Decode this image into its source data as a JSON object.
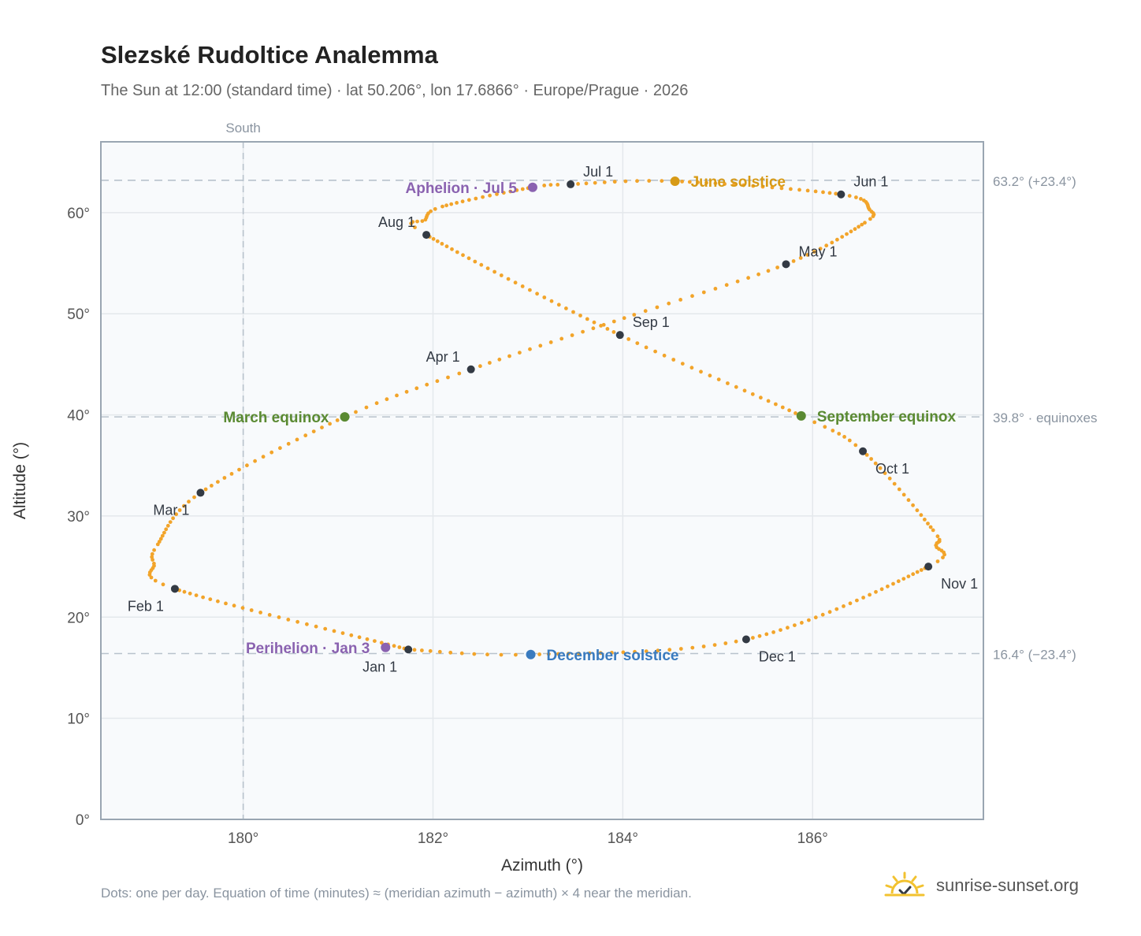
{
  "header": {
    "title": "Slezské Rudoltice Analemma",
    "subtitle": "The Sun at 12:00 (standard time) · lat 50.206°, lon 17.6866° · Europe/Prague · 2026"
  },
  "footer": {
    "note": "Dots: one per day. Equation of time (minutes) ≈ (meridian azimuth − azimuth) × 4 near the meridian.",
    "brand": "sunrise-sunset.org"
  },
  "colors": {
    "path": "#f2a42a",
    "month": "#333a44",
    "june": "#d79a16",
    "december": "#3a7bbf",
    "equinox": "#5a8a32",
    "apsis": "#8a62b0",
    "reference": "#b8c2cc",
    "plot_bg": "#f8fafc",
    "grid": "#e4e8ec",
    "frame": "#9aa6b2"
  },
  "chart_data": {
    "type": "scatter",
    "xlabel": "Azimuth (°)",
    "ylabel": "Altitude (°)",
    "xlim": [
      178.5,
      187.8
    ],
    "ylim": [
      0,
      67
    ],
    "xticks": [
      {
        "value": 180,
        "label": "180°"
      },
      {
        "value": 182,
        "label": "182°"
      },
      {
        "value": 184,
        "label": "184°"
      },
      {
        "value": 186,
        "label": "186°"
      }
    ],
    "yticks": [
      {
        "value": 0,
        "label": "0°"
      },
      {
        "value": 10,
        "label": "10°"
      },
      {
        "value": 20,
        "label": "20°"
      },
      {
        "value": 30,
        "label": "30°"
      },
      {
        "value": 40,
        "label": "40°"
      },
      {
        "value": 50,
        "label": "50°"
      },
      {
        "value": 60,
        "label": "60°"
      }
    ],
    "grid": true,
    "meridian": {
      "azimuth": 180,
      "label": "South"
    },
    "reference_lines": [
      {
        "altitude": 63.2,
        "label": "63.2° (+23.4°)"
      },
      {
        "altitude": 39.8,
        "label": "39.8° · equinoxes"
      },
      {
        "altitude": 16.4,
        "label": "16.4° (−23.4°)"
      }
    ],
    "path_anchors": [
      {
        "day": 0,
        "az": 181.74,
        "alt": 16.8
      },
      {
        "day": 31,
        "az": 179.28,
        "alt": 22.8
      },
      {
        "day": 40,
        "az": 179.06,
        "alt": 25.3
      },
      {
        "day": 45,
        "az": 179.1,
        "alt": 27.2
      },
      {
        "day": 59,
        "az": 179.55,
        "alt": 32.3
      },
      {
        "day": 78,
        "az": 181.07,
        "alt": 39.8
      },
      {
        "day": 90,
        "az": 182.4,
        "alt": 44.5
      },
      {
        "day": 106,
        "az": 184.12,
        "alt": 49.9
      },
      {
        "day": 120,
        "az": 185.72,
        "alt": 54.9
      },
      {
        "day": 135,
        "az": 186.55,
        "alt": 59.0
      },
      {
        "day": 141,
        "az": 186.6,
        "alt": 60.3
      },
      {
        "day": 151,
        "az": 186.3,
        "alt": 61.8
      },
      {
        "day": 171,
        "az": 184.55,
        "alt": 63.1
      },
      {
        "day": 181,
        "az": 183.45,
        "alt": 62.8
      },
      {
        "day": 185,
        "az": 183.05,
        "alt": 62.5
      },
      {
        "day": 200,
        "az": 182.1,
        "alt": 60.6
      },
      {
        "day": 206,
        "az": 181.92,
        "alt": 59.3
      },
      {
        "day": 212,
        "az": 181.93,
        "alt": 57.8
      },
      {
        "day": 243,
        "az": 183.97,
        "alt": 47.9
      },
      {
        "day": 265,
        "az": 185.88,
        "alt": 39.9
      },
      {
        "day": 273,
        "az": 186.53,
        "alt": 36.4
      },
      {
        "day": 290,
        "az": 187.27,
        "alt": 28.6
      },
      {
        "day": 296,
        "az": 187.3,
        "alt": 27.1
      },
      {
        "day": 304,
        "az": 187.22,
        "alt": 25.0
      },
      {
        "day": 334,
        "az": 185.3,
        "alt": 17.8
      },
      {
        "day": 354,
        "az": 183.03,
        "alt": 16.3
      },
      {
        "day": 365,
        "az": 181.74,
        "alt": 16.8
      }
    ],
    "month_markers": [
      {
        "label": "Jan 1",
        "az": 181.74,
        "alt": 16.8,
        "pos": "below-left"
      },
      {
        "label": "Feb 1",
        "az": 179.28,
        "alt": 22.8,
        "pos": "below-left"
      },
      {
        "label": "Mar 1",
        "az": 179.55,
        "alt": 32.3,
        "pos": "below-left"
      },
      {
        "label": "Apr 1",
        "az": 182.4,
        "alt": 44.5,
        "pos": "above-left"
      },
      {
        "label": "May 1",
        "az": 185.72,
        "alt": 54.9,
        "pos": "above-right"
      },
      {
        "label": "Jun 1",
        "az": 186.3,
        "alt": 61.8,
        "pos": "above-right"
      },
      {
        "label": "Jul 1",
        "az": 183.45,
        "alt": 62.8,
        "pos": "above-right"
      },
      {
        "label": "Aug 1",
        "az": 181.93,
        "alt": 57.8,
        "pos": "above-left"
      },
      {
        "label": "Sep 1",
        "az": 183.97,
        "alt": 47.9,
        "pos": "above-right"
      },
      {
        "label": "Oct 1",
        "az": 186.53,
        "alt": 36.4,
        "pos": "below-right"
      },
      {
        "label": "Nov 1",
        "az": 187.22,
        "alt": 25.0,
        "pos": "below-right"
      },
      {
        "label": "Dec 1",
        "az": 185.3,
        "alt": 17.8,
        "pos": "below-right"
      }
    ],
    "events": [
      {
        "label": "June solstice",
        "az": 184.55,
        "alt": 63.1,
        "pos": "right",
        "color": "#d79a16"
      },
      {
        "label": "December solstice",
        "az": 183.03,
        "alt": 16.3,
        "pos": "right",
        "color": "#3a7bbf"
      },
      {
        "label": "March equinox",
        "az": 181.07,
        "alt": 39.8,
        "pos": "left",
        "color": "#5a8a32"
      },
      {
        "label": "September equinox",
        "az": 185.88,
        "alt": 39.9,
        "pos": "right",
        "color": "#5a8a32"
      },
      {
        "label": "Aphelion · Jul 5",
        "az": 183.05,
        "alt": 62.5,
        "pos": "left",
        "color": "#8a62b0"
      },
      {
        "label": "Perihelion · Jan 3",
        "az": 181.5,
        "alt": 17.0,
        "pos": "left",
        "color": "#8a62b0"
      }
    ]
  }
}
